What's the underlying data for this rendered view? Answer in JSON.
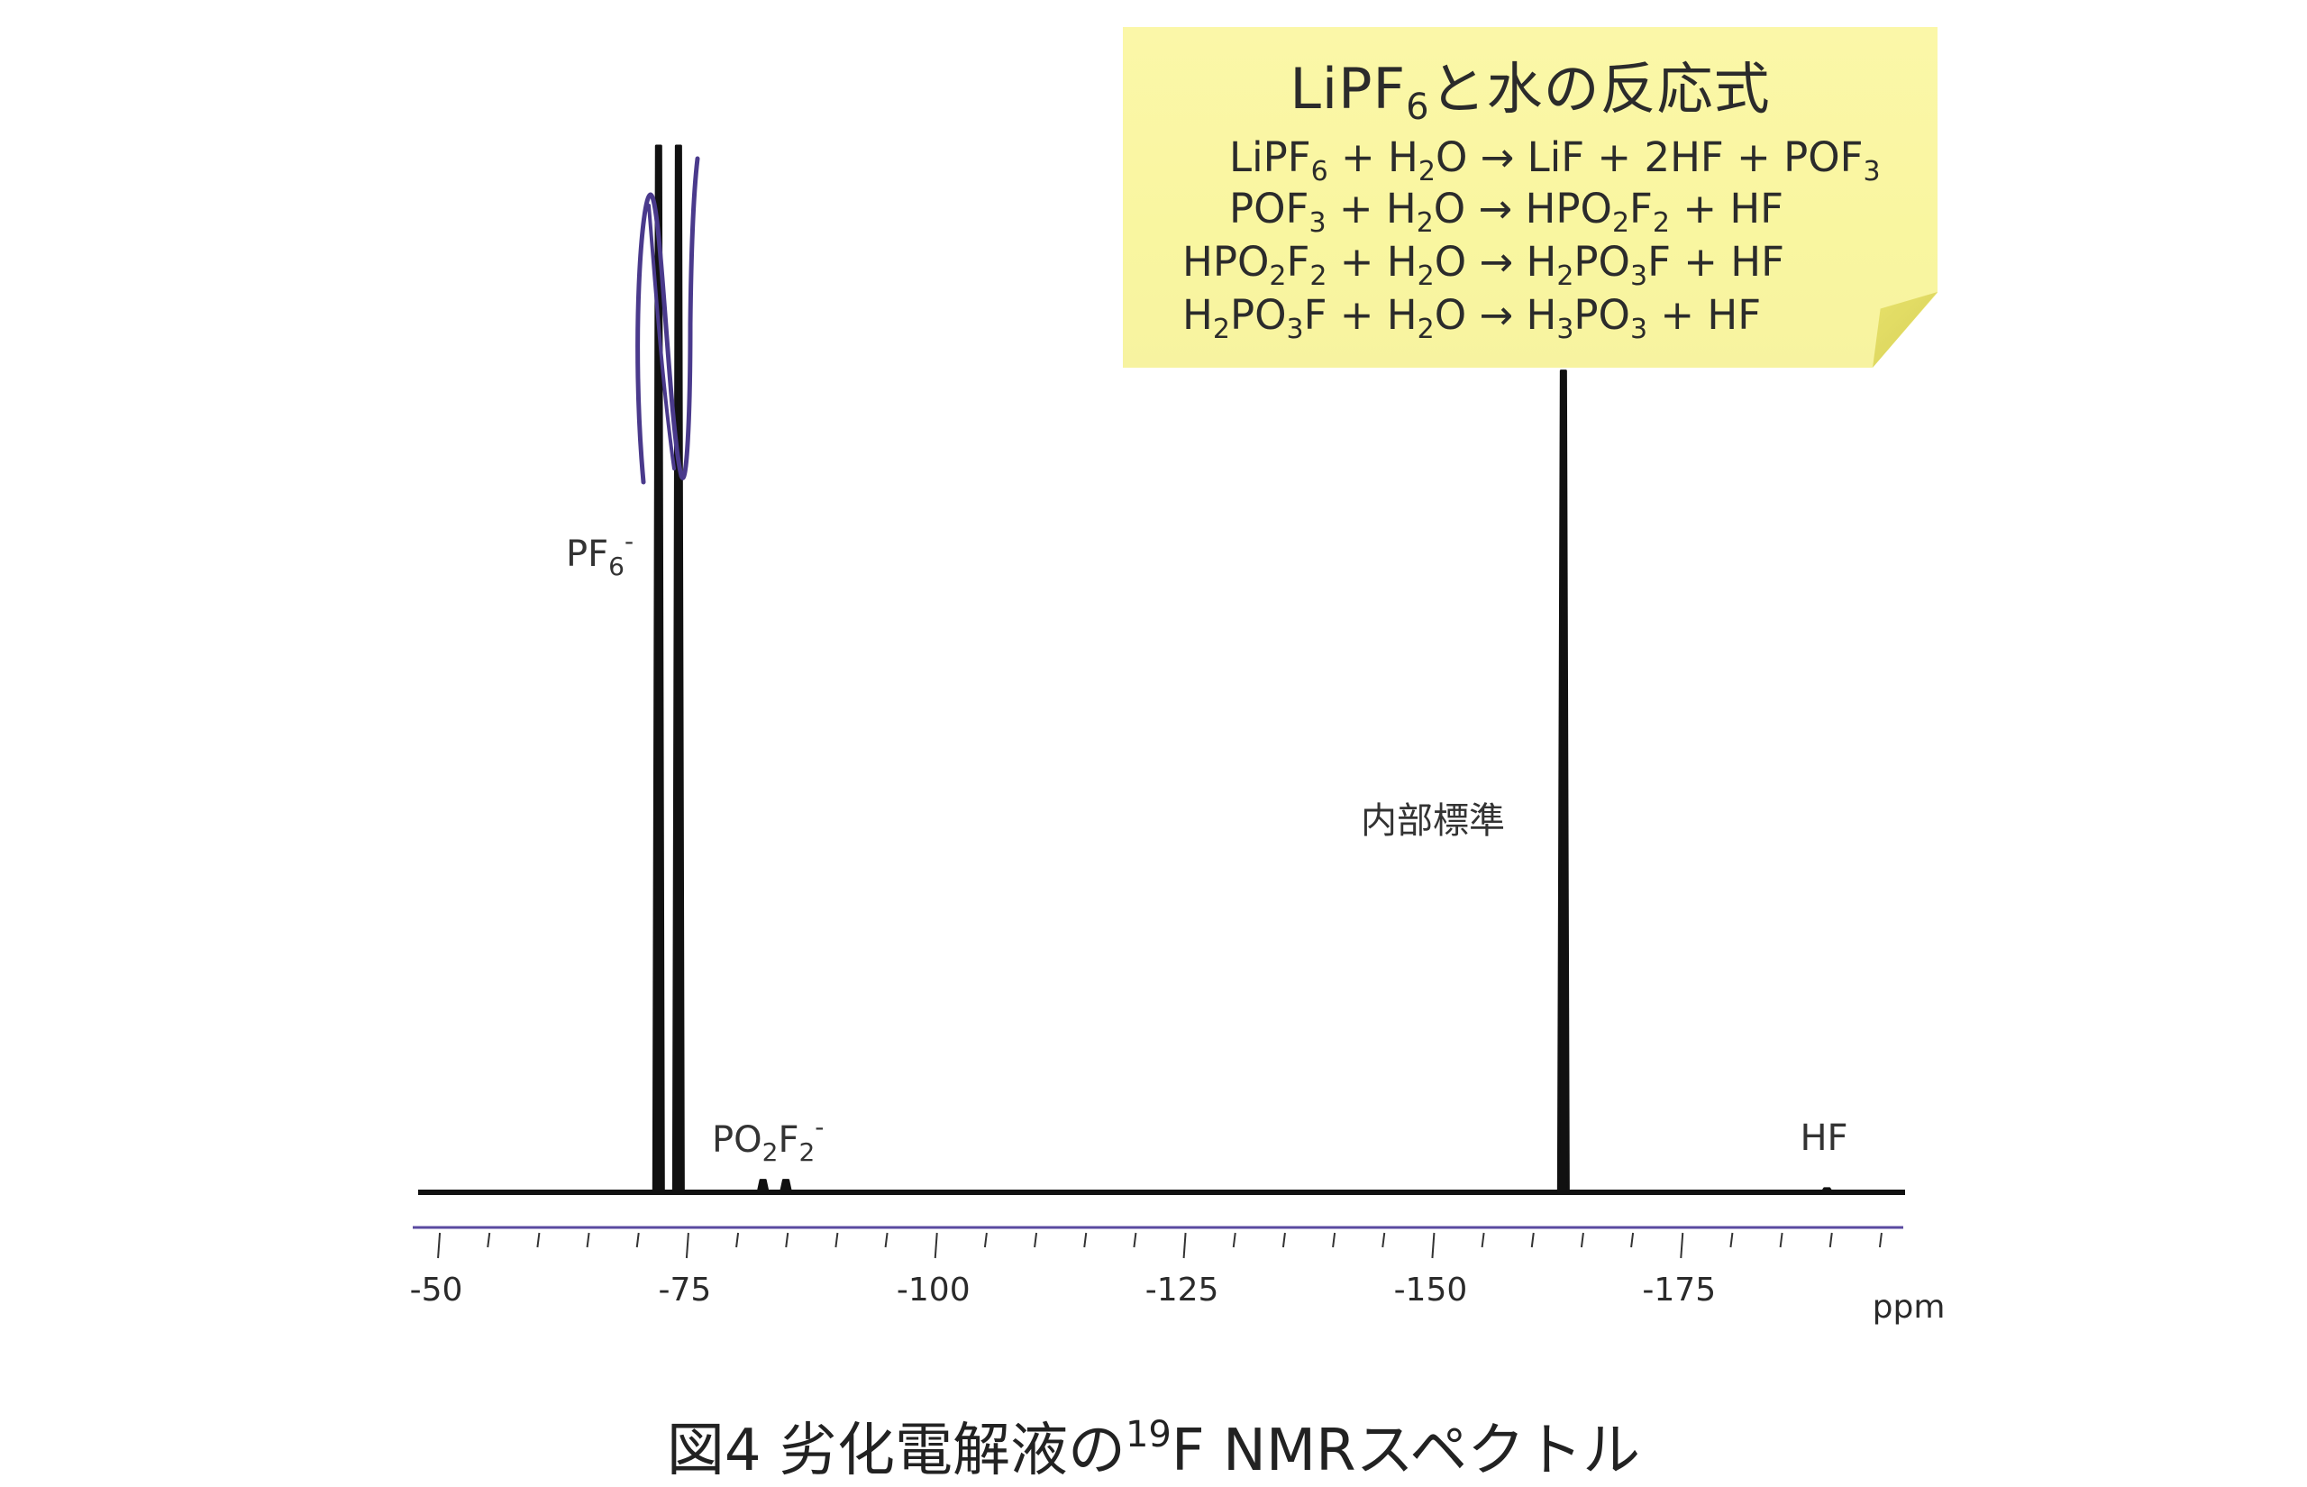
{
  "chart_data": {
    "type": "line",
    "xlabel": "ppm",
    "xlim": [
      -48,
      -197
    ],
    "x_ticks": [
      -50,
      -75,
      -100,
      -125,
      -150,
      -175
    ],
    "x_tick_labels": [
      "-50",
      "-75",
      "-100",
      "-125",
      "-150",
      "-175"
    ],
    "x_minor_step": 5,
    "peaks": [
      {
        "x": -72.0,
        "height": 1.0
      },
      {
        "x": -74.0,
        "height": 1.0
      },
      {
        "x": -82.5,
        "height": 0.012
      },
      {
        "x": -84.8,
        "height": 0.012
      },
      {
        "x": -163.0,
        "height": 0.785
      },
      {
        "x": -189.5,
        "height": 0.004
      }
    ],
    "annotations": [
      {
        "id": "pf6",
        "text": "PF",
        "sub": "6",
        "sup": "-",
        "x": -73.0
      },
      {
        "id": "po2f2",
        "text_parts": [
          "PO",
          "2",
          "F",
          "2",
          "-"
        ],
        "x": -83.7
      },
      {
        "id": "internal",
        "text": "内部標準",
        "x": -163.0
      },
      {
        "id": "hf",
        "text": "HF",
        "x": -189.5
      }
    ],
    "grid": false,
    "colors": {
      "line": "#111111",
      "axis": "#5a4aa0",
      "pen": "#4a3a8c"
    }
  },
  "note": {
    "title_main": "LiPF",
    "title_sub": "6",
    "title_rest": "と水の反応式",
    "equations": [
      [
        "LiPF",
        "6",
        " + H",
        "2",
        "O → LiF + 2HF + POF",
        "3"
      ],
      [
        "POF",
        "3",
        " + H",
        "2",
        "O → HPO",
        "2",
        "F",
        "2",
        " + HF"
      ],
      [
        "HPO",
        "2",
        "F",
        "2",
        " + H",
        "2",
        "O → H",
        "2",
        "PO",
        "3",
        "F + HF"
      ],
      [
        "H",
        "2",
        "PO",
        "3",
        "F + H",
        "2",
        "O → H",
        "3",
        "PO",
        "3",
        " + HF"
      ]
    ]
  },
  "caption": {
    "prefix": "図4  劣化電解液の",
    "sup": "19",
    "suffix": "F NMRスペクトル"
  }
}
